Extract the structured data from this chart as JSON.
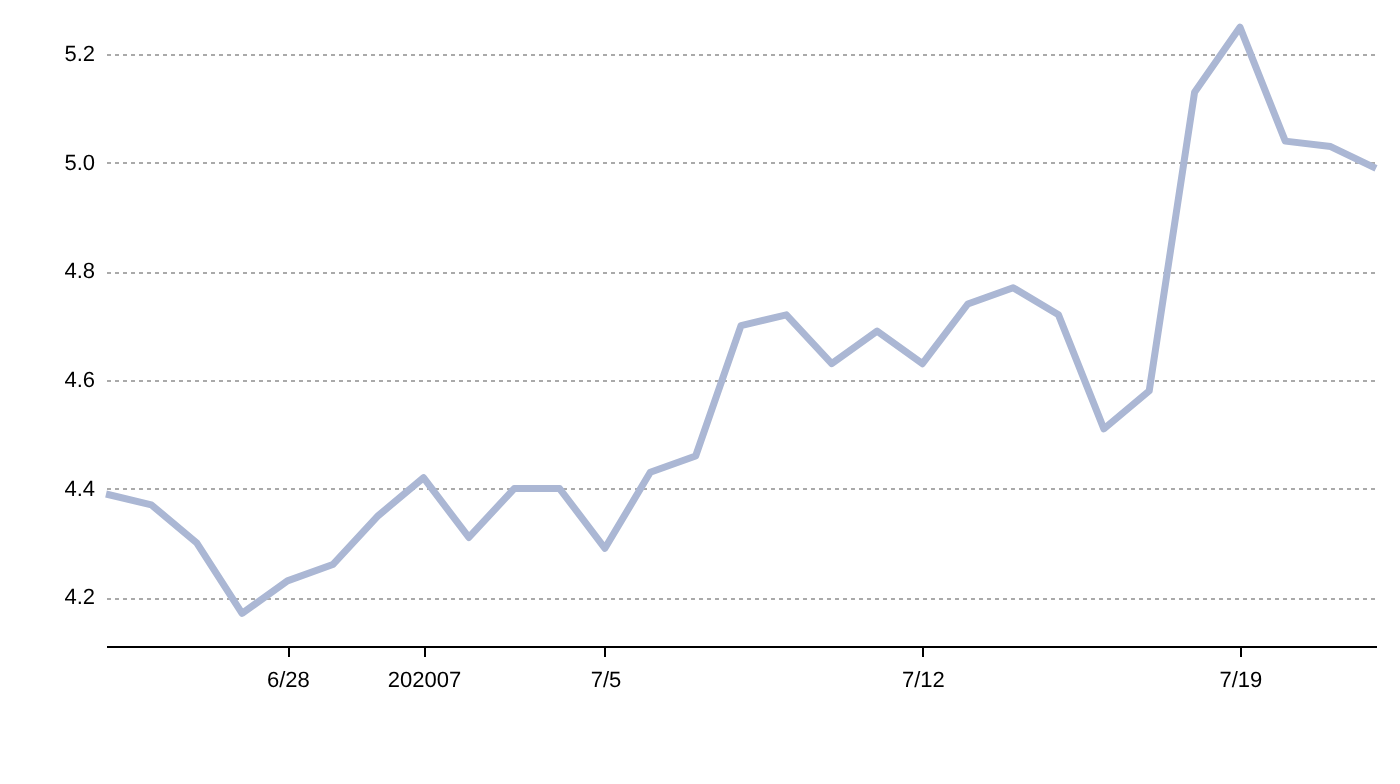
{
  "chart_data": {
    "type": "line",
    "x": [
      "2020-06-24",
      "2020-06-25",
      "2020-06-26",
      "2020-06-27",
      "2020-06-28",
      "2020-06-29",
      "2020-06-30",
      "2020-07-01",
      "2020-07-02",
      "2020-07-03",
      "2020-07-04",
      "2020-07-05",
      "2020-07-06",
      "2020-07-07",
      "2020-07-08",
      "2020-07-09",
      "2020-07-10",
      "2020-07-11",
      "2020-07-12",
      "2020-07-13",
      "2020-07-14",
      "2020-07-15",
      "2020-07-16",
      "2020-07-17",
      "2020-07-18",
      "2020-07-19",
      "2020-07-20",
      "2020-07-21",
      "2020-07-22"
    ],
    "series": [
      {
        "color": "#abb7d4",
        "values": [
          4.39,
          4.37,
          4.3,
          4.17,
          4.23,
          4.26,
          4.35,
          4.42,
          4.31,
          4.4,
          4.4,
          4.29,
          4.43,
          4.46,
          4.7,
          4.72,
          4.63,
          4.69,
          4.63,
          4.74,
          4.77,
          4.72,
          4.51,
          4.58,
          5.13,
          5.25,
          5.04,
          5.03,
          4.99
        ]
      }
    ],
    "xlim": [
      "2020-06-24",
      "2020-07-22"
    ],
    "xticks": [
      {
        "value": "2020-06-28",
        "label": "6/28"
      },
      {
        "value": "2020-07-01",
        "label": "202007"
      },
      {
        "value": "2020-07-05",
        "label": "7/5"
      },
      {
        "value": "2020-07-12",
        "label": "7/12"
      },
      {
        "value": "2020-07-19",
        "label": "7/19"
      }
    ],
    "ylim": [
      4.11,
      5.3
    ],
    "yticks": [
      4.2,
      4.4,
      4.6,
      4.8,
      {
        "value": 5,
        "label": "5.0"
      },
      5.2
    ],
    "grid": "y",
    "marker": "none",
    "line_style": "solid"
  }
}
